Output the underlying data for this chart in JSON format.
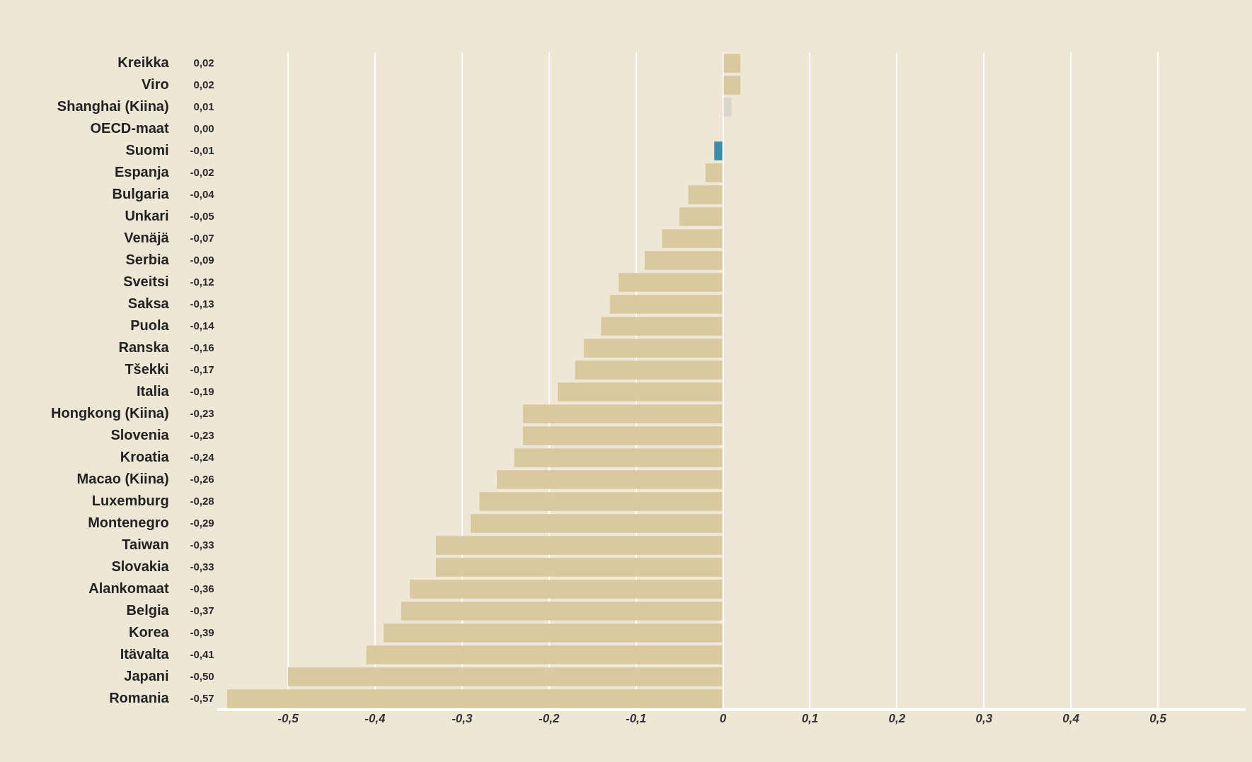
{
  "chart_data": {
    "type": "bar",
    "orientation": "horizontal",
    "categories": [
      "Kreikka",
      "Viro",
      "Shanghai (Kiina)",
      "OECD-maat",
      "Suomi",
      "Espanja",
      "Bulgaria",
      "Unkari",
      "Venäjä",
      "Serbia",
      "Sveitsi",
      "Saksa",
      "Puola",
      "Ranska",
      "Tšekki",
      "Italia",
      "Hongkong (Kiina)",
      "Slovenia",
      "Kroatia",
      "Macao (Kiina)",
      "Luxemburg",
      "Montenegro",
      "Taiwan",
      "Slovakia",
      "Alankomaat",
      "Belgia",
      "Korea",
      "Itävalta",
      "Japani",
      "Romania"
    ],
    "values": [
      0.02,
      0.02,
      0.01,
      0.0,
      -0.01,
      -0.02,
      -0.04,
      -0.05,
      -0.07,
      -0.09,
      -0.12,
      -0.13,
      -0.14,
      -0.16,
      -0.17,
      -0.19,
      -0.23,
      -0.23,
      -0.24,
      -0.26,
      -0.28,
      -0.29,
      -0.33,
      -0.33,
      -0.36,
      -0.37,
      -0.39,
      -0.41,
      -0.5,
      -0.57
    ],
    "value_labels": [
      "0,02",
      "0,02",
      "0,01",
      "0,00",
      "-0,01",
      "-0,02",
      "-0,04",
      "-0,05",
      "-0,07",
      "-0,09",
      "-0,12",
      "-0,13",
      "-0,14",
      "-0,16",
      "-0,17",
      "-0,19",
      "-0,23",
      "-0,23",
      "-0,24",
      "-0,26",
      "-0,28",
      "-0,29",
      "-0,33",
      "-0,33",
      "-0,36",
      "-0,37",
      "-0,39",
      "-0,41",
      "-0,50",
      "-0,57"
    ],
    "colors": [
      "#d8c99e",
      "#d8c99e",
      "#d9d6cc",
      "#7c9c8c",
      "#3b8db0",
      "#d8c99e",
      "#d8c99e",
      "#d8c99e",
      "#d8c99e",
      "#d8c99e",
      "#d8c99e",
      "#d8c99e",
      "#d8c99e",
      "#d8c99e",
      "#d8c99e",
      "#d8c99e",
      "#d8c99e",
      "#d8c99e",
      "#d8c99e",
      "#d8c99e",
      "#d8c99e",
      "#d8c99e",
      "#d8c99e",
      "#d8c99e",
      "#d8c99e",
      "#d8c99e",
      "#d8c99e",
      "#d8c99e",
      "#d8c99e",
      "#d8c99e"
    ],
    "xlim": [
      -0.58,
      0.6
    ],
    "xticks": [
      {
        "value": -0.5,
        "label": "-0,5"
      },
      {
        "value": -0.4,
        "label": "-0,4"
      },
      {
        "value": -0.3,
        "label": "-0,3"
      },
      {
        "value": -0.2,
        "label": "-0,2"
      },
      {
        "value": -0.1,
        "label": "-0,1"
      },
      0,
      {
        "value": 0.1,
        "label": "0,1"
      },
      {
        "value": 0.2,
        "label": "0,2"
      },
      {
        "value": 0.3,
        "label": "0,3"
      },
      {
        "value": 0.4,
        "label": "0,4"
      },
      {
        "value": 0.5,
        "label": "0,5"
      }
    ],
    "grid": "x"
  }
}
